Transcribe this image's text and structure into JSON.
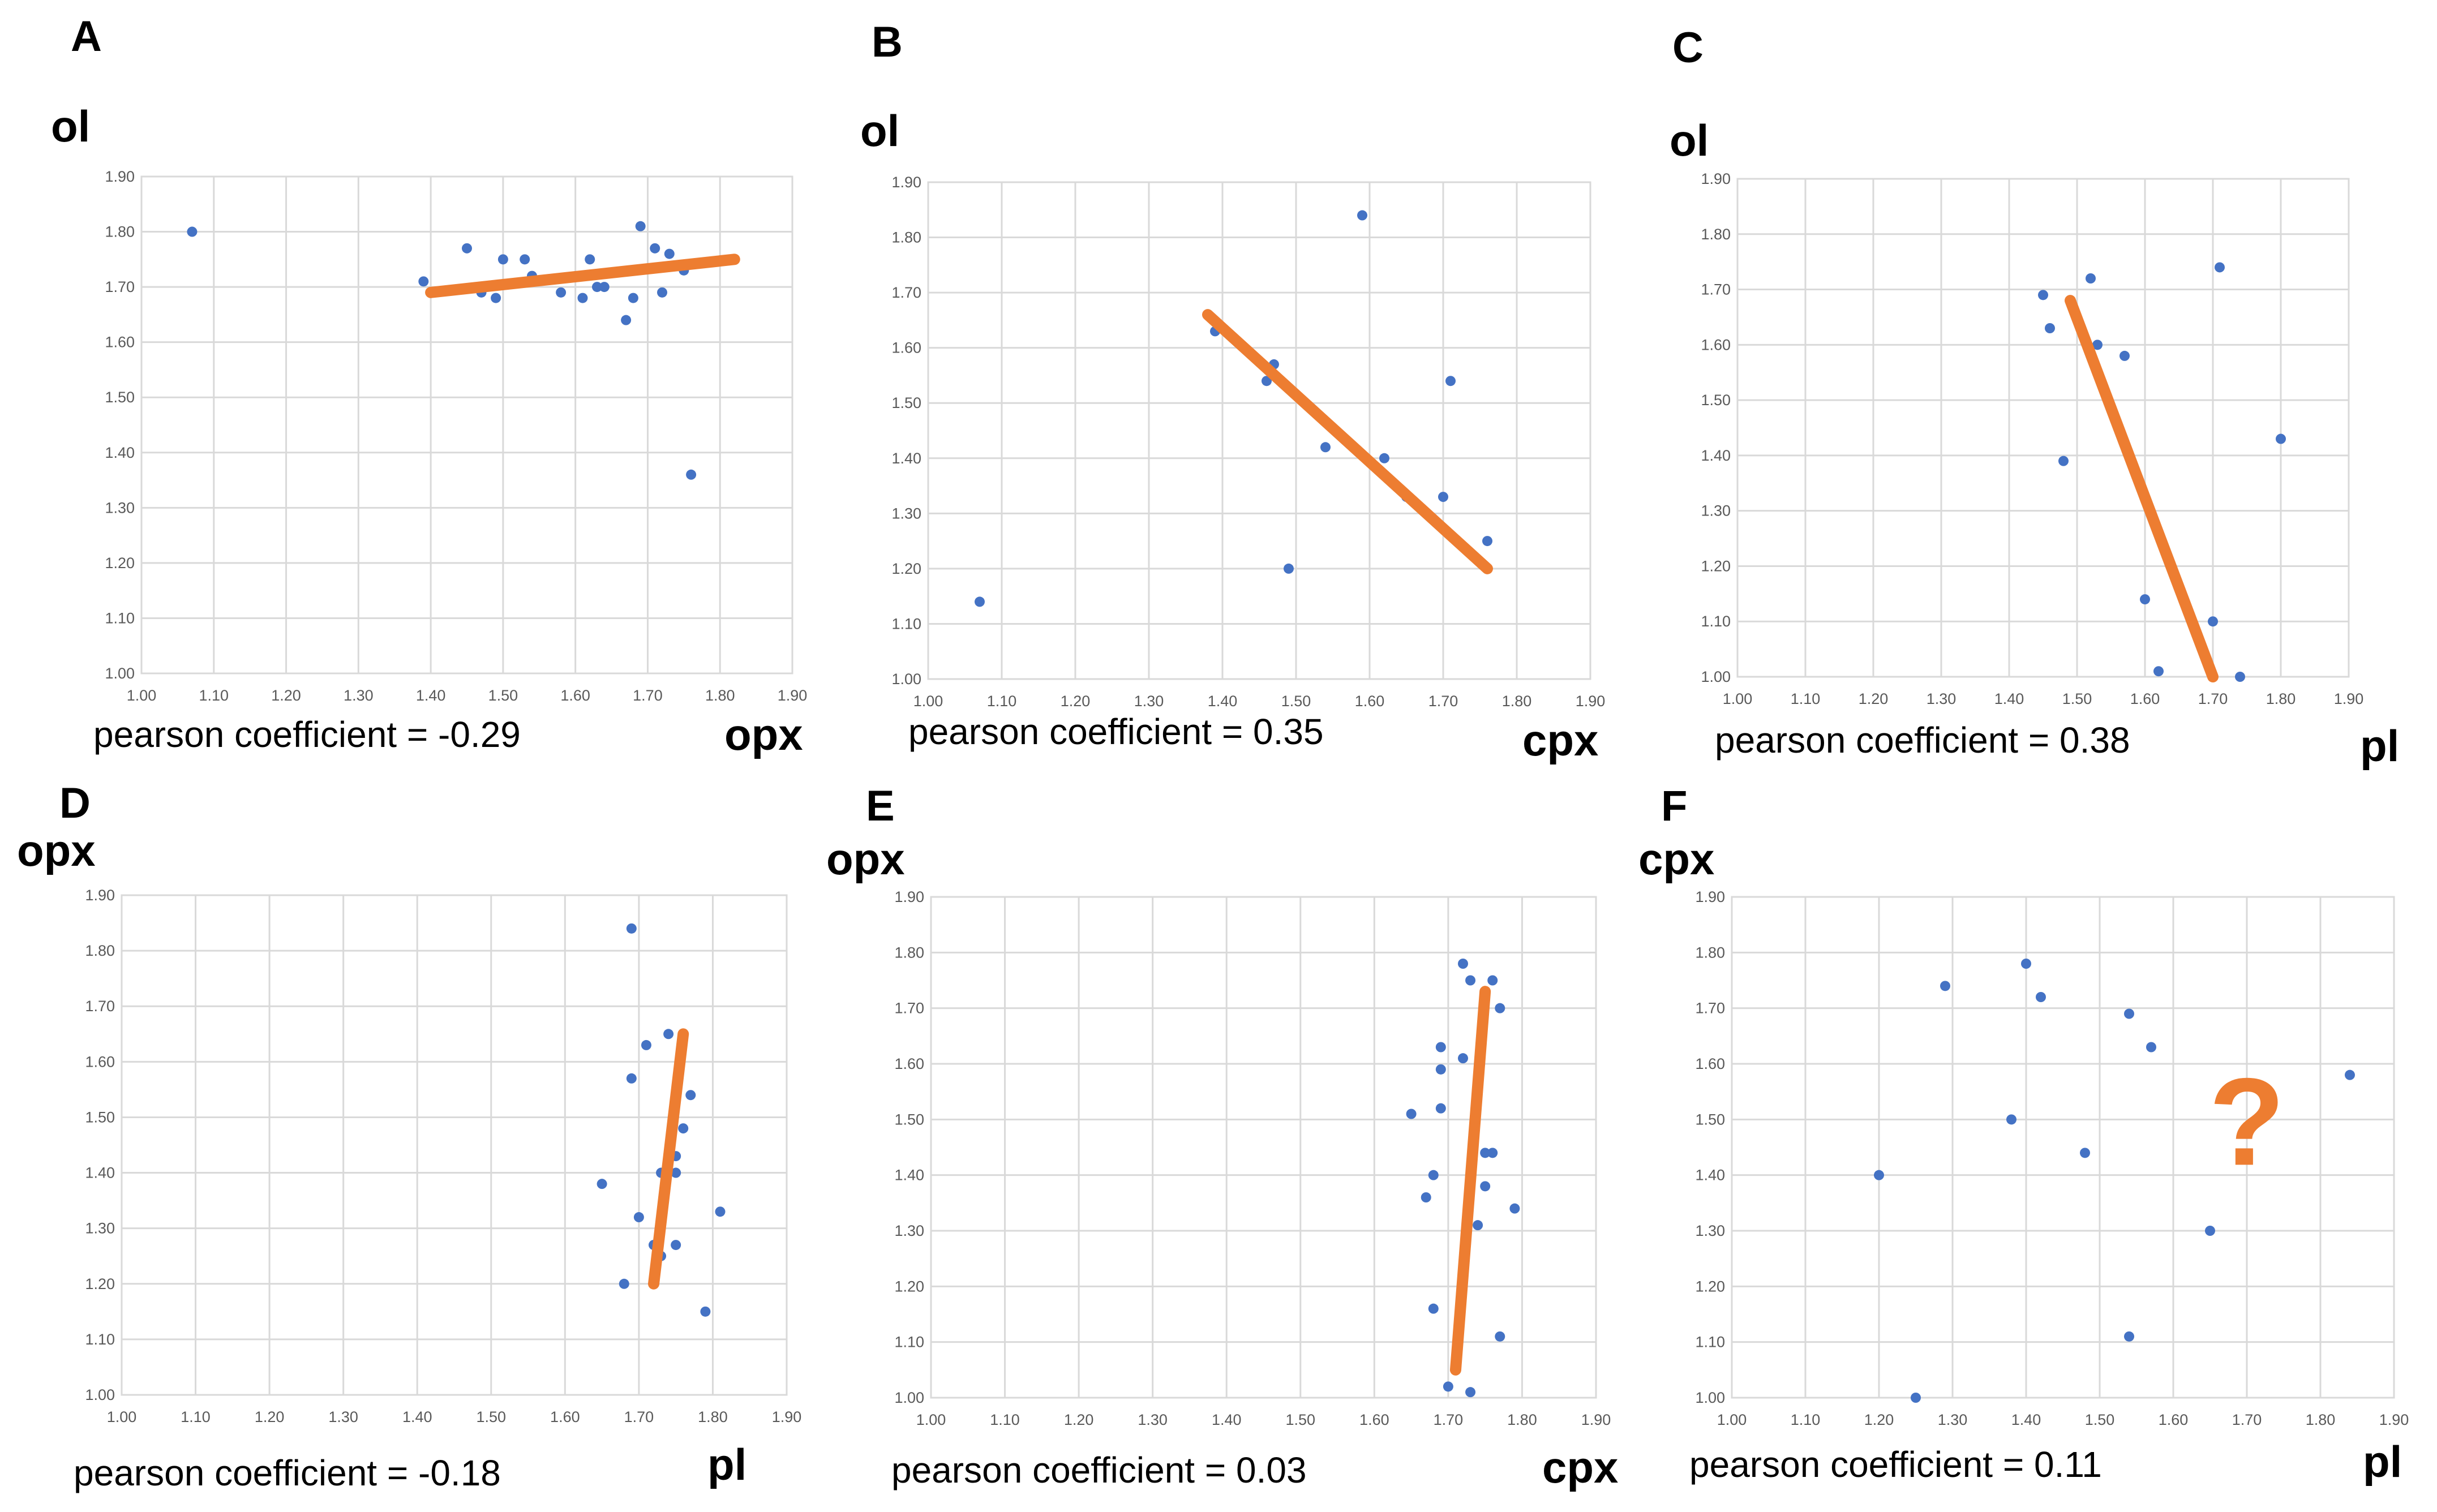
{
  "colors": {
    "points": "#4472c4",
    "trendline": "#ed7d31",
    "grid": "#d9d9d9",
    "ticks": "#595959"
  },
  "tick_labels": [
    "1.00",
    "1.10",
    "1.20",
    "1.30",
    "1.40",
    "1.50",
    "1.60",
    "1.70",
    "1.80",
    "1.90"
  ],
  "chart_data": [
    {
      "panel": "A",
      "type": "scatter",
      "ylabel": "ol",
      "xlabel": "opx",
      "pearson_label": "pearson coefficient = -0.29",
      "xlim": [
        1.0,
        1.9
      ],
      "ylim": [
        1.0,
        1.9
      ],
      "points": [
        [
          1.07,
          1.8
        ],
        [
          1.39,
          1.71
        ],
        [
          1.45,
          1.77
        ],
        [
          1.47,
          1.69
        ],
        [
          1.49,
          1.68
        ],
        [
          1.5,
          1.75
        ],
        [
          1.53,
          1.75
        ],
        [
          1.54,
          1.72
        ],
        [
          1.58,
          1.69
        ],
        [
          1.61,
          1.68
        ],
        [
          1.62,
          1.75
        ],
        [
          1.63,
          1.7
        ],
        [
          1.64,
          1.7
        ],
        [
          1.67,
          1.64
        ],
        [
          1.68,
          1.68
        ],
        [
          1.69,
          1.81
        ],
        [
          1.71,
          1.77
        ],
        [
          1.72,
          1.69
        ],
        [
          1.73,
          1.76
        ],
        [
          1.75,
          1.73
        ],
        [
          1.76,
          1.36
        ]
      ],
      "trendline": [
        [
          1.4,
          1.69
        ],
        [
          1.82,
          1.75
        ]
      ]
    },
    {
      "panel": "B",
      "type": "scatter",
      "ylabel": "ol",
      "xlabel": "cpx",
      "pearson_label": "pearson coefficient = 0.35",
      "xlim": [
        1.0,
        1.9
      ],
      "ylim": [
        1.0,
        1.9
      ],
      "points": [
        [
          1.07,
          1.14
        ],
        [
          1.39,
          1.63
        ],
        [
          1.46,
          1.54
        ],
        [
          1.47,
          1.57
        ],
        [
          1.49,
          1.2
        ],
        [
          1.54,
          1.42
        ],
        [
          1.59,
          1.84
        ],
        [
          1.62,
          1.4
        ],
        [
          1.65,
          1.33
        ],
        [
          1.7,
          1.33
        ],
        [
          1.71,
          1.54
        ],
        [
          1.76,
          1.25
        ]
      ],
      "trendline": [
        [
          1.38,
          1.66
        ],
        [
          1.76,
          1.2
        ]
      ]
    },
    {
      "panel": "C",
      "type": "scatter",
      "ylabel": "ol",
      "xlabel": "pl",
      "pearson_label": "pearson coefficient = 0.38",
      "xlim": [
        1.0,
        1.9
      ],
      "ylim": [
        1.0,
        1.9
      ],
      "points": [
        [
          1.45,
          1.69
        ],
        [
          1.46,
          1.63
        ],
        [
          1.48,
          1.39
        ],
        [
          1.52,
          1.72
        ],
        [
          1.53,
          1.6
        ],
        [
          1.57,
          1.58
        ],
        [
          1.6,
          1.14
        ],
        [
          1.62,
          1.01
        ],
        [
          1.7,
          1.1
        ],
        [
          1.71,
          1.74
        ],
        [
          1.74,
          1.0
        ],
        [
          1.8,
          1.43
        ]
      ],
      "trendline": [
        [
          1.49,
          1.68
        ],
        [
          1.7,
          1.0
        ]
      ]
    },
    {
      "panel": "D",
      "type": "scatter",
      "ylabel": "opx",
      "xlabel": "pl",
      "pearson_label": "pearson coefficient = -0.18",
      "xlim": [
        1.0,
        1.9
      ],
      "ylim": [
        1.0,
        1.9
      ],
      "points": [
        [
          1.65,
          1.38
        ],
        [
          1.68,
          1.2
        ],
        [
          1.69,
          1.84
        ],
        [
          1.69,
          1.57
        ],
        [
          1.7,
          1.32
        ],
        [
          1.71,
          1.63
        ],
        [
          1.72,
          1.27
        ],
        [
          1.73,
          1.25
        ],
        [
          1.73,
          1.4
        ],
        [
          1.74,
          1.65
        ],
        [
          1.75,
          1.43
        ],
        [
          1.75,
          1.4
        ],
        [
          1.75,
          1.27
        ],
        [
          1.76,
          1.48
        ],
        [
          1.77,
          1.54
        ],
        [
          1.79,
          1.15
        ],
        [
          1.81,
          1.33
        ]
      ],
      "trendline": [
        [
          1.72,
          1.2
        ],
        [
          1.76,
          1.65
        ]
      ]
    },
    {
      "panel": "E",
      "type": "scatter",
      "ylabel": "opx",
      "xlabel": "cpx",
      "pearson_label": "pearson coefficient = 0.03",
      "xlim": [
        1.0,
        1.9
      ],
      "ylim": [
        1.0,
        1.9
      ],
      "points": [
        [
          1.65,
          1.51
        ],
        [
          1.67,
          1.36
        ],
        [
          1.68,
          1.4
        ],
        [
          1.68,
          1.16
        ],
        [
          1.69,
          1.63
        ],
        [
          1.69,
          1.59
        ],
        [
          1.69,
          1.52
        ],
        [
          1.7,
          1.02
        ],
        [
          1.72,
          1.61
        ],
        [
          1.72,
          1.78
        ],
        [
          1.73,
          1.75
        ],
        [
          1.73,
          1.01
        ],
        [
          1.74,
          1.31
        ],
        [
          1.75,
          1.44
        ],
        [
          1.75,
          1.38
        ],
        [
          1.76,
          1.75
        ],
        [
          1.76,
          1.44
        ],
        [
          1.77,
          1.7
        ],
        [
          1.77,
          1.11
        ],
        [
          1.79,
          1.34
        ]
      ],
      "trendline": [
        [
          1.71,
          1.05
        ],
        [
          1.75,
          1.73
        ]
      ]
    },
    {
      "panel": "F",
      "type": "scatter",
      "ylabel": "cpx",
      "xlabel": "pl",
      "pearson_label": "pearson coefficient = 0.11",
      "xlim": [
        1.0,
        1.9
      ],
      "ylim": [
        1.0,
        1.9
      ],
      "points": [
        [
          1.2,
          1.4
        ],
        [
          1.25,
          1.0
        ],
        [
          1.29,
          1.74
        ],
        [
          1.38,
          1.5
        ],
        [
          1.4,
          1.78
        ],
        [
          1.42,
          1.72
        ],
        [
          1.48,
          1.44
        ],
        [
          1.54,
          1.69
        ],
        [
          1.54,
          1.11
        ],
        [
          1.57,
          1.63
        ],
        [
          1.65,
          1.3
        ],
        [
          1.84,
          1.58
        ]
      ],
      "annotation": "?"
    }
  ]
}
